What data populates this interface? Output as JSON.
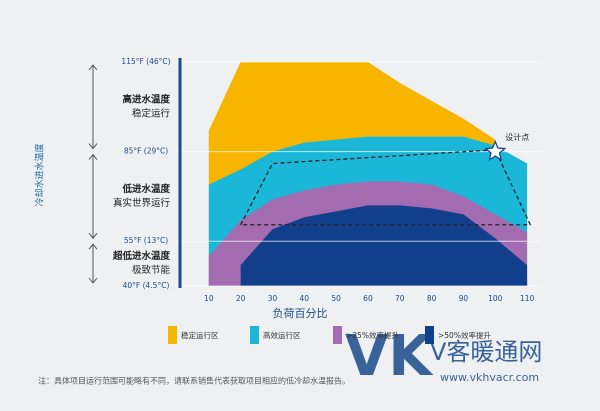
{
  "chart_data": {
    "type": "area",
    "y_label": "冷却水进水温度",
    "x_label": "负荷百分比",
    "x": [
      10,
      20,
      30,
      40,
      50,
      60,
      70,
      80,
      90,
      100,
      110
    ],
    "series": [
      {
        "name": "稳定运行区",
        "color": "#f7b500",
        "values": [
          92,
          115,
          115,
          115,
          115,
          115,
          108,
          102,
          96,
          89,
          null
        ]
      },
      {
        "name": "高效运行区",
        "color": "#1ab7d9",
        "values": [
          74,
          79,
          85,
          88,
          89,
          90,
          90,
          90,
          90,
          87,
          81
        ]
      },
      {
        "name": ">25%效率提升",
        "color": "#a36cb0",
        "values": [
          50,
          62,
          69,
          72,
          74,
          75,
          75,
          74,
          70,
          64,
          58
        ]
      },
      {
        "name": ">50%效率提升",
        "color": "#123f8c",
        "values": [
          null,
          47,
          59,
          63,
          65,
          67,
          67,
          66,
          64,
          56,
          47
        ]
      }
    ],
    "boundary": {
      "x": [
        20,
        30,
        100,
        111
      ],
      "values": [
        60.5,
        81,
        85.6,
        60.5
      ]
    },
    "annotations": [
      {
        "text": "设计点",
        "x": 100,
        "y": 85
      }
    ],
    "bands": [
      {
        "title": "高进水温度",
        "subtitle": "稳定运行",
        "from": 85,
        "to": 115
      },
      {
        "title": "低进水温度",
        "subtitle": "真实世界运行",
        "from": 55,
        "to": 85
      },
      {
        "title": "超低进水温度",
        "subtitle": "极致节能",
        "from": 40,
        "to": 55
      }
    ],
    "xlim": [
      0,
      115
    ],
    "xticks": [
      10,
      20,
      30,
      40,
      50,
      60,
      70,
      80,
      90,
      100,
      110
    ],
    "ylim": [
      40,
      115
    ],
    "yticks": [
      {
        "value": 40,
        "label": "40°F (4.5°C)"
      },
      {
        "value": 55,
        "label": "55°F (13°C)"
      },
      {
        "value": 85,
        "label": "85°F (29°C)"
      },
      {
        "value": 115,
        "label": "115°F (46°C)"
      }
    ],
    "grid": true,
    "footnote": "注：具体项目运行范围可能略有不同，请联系销售代表获取项目相应的低冷却水温报告。"
  },
  "watermark": {
    "logo": "VK",
    "text": "V客暖通网",
    "url": "www.vkhvacr.com"
  }
}
